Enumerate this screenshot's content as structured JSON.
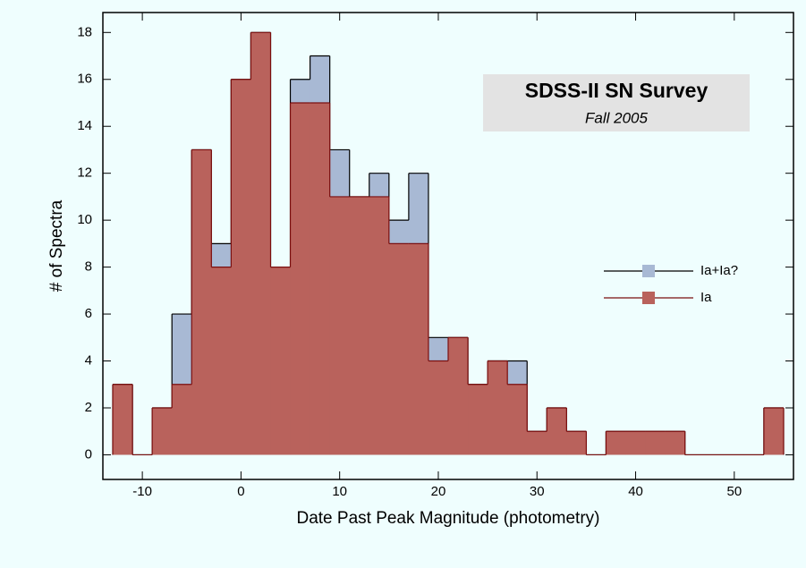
{
  "chart_data": {
    "type": "histogram",
    "title": "SDSS-II SN Survey",
    "subtitle": "Fall 2005",
    "x_label": "Date Past Peak Magnitude (photometry)",
    "y_label": "# of Spectra",
    "bins": [
      -13,
      -11,
      -9,
      -7,
      -5,
      -3,
      -1,
      1,
      3,
      5,
      7,
      9,
      11,
      13,
      15,
      17,
      19,
      21,
      23,
      25,
      27,
      29,
      31,
      33,
      35,
      37,
      39,
      41,
      43,
      45,
      47,
      49,
      51,
      53,
      55
    ],
    "series": [
      {
        "name": "Ia+Ia?",
        "color": "#a8b9d4",
        "line_color": "#000000",
        "values": [
          3,
          0,
          2,
          6,
          13,
          9,
          16,
          18,
          8,
          16,
          17,
          13,
          11,
          12,
          10,
          12,
          5,
          5,
          3,
          4,
          4,
          1,
          2,
          1,
          0,
          1,
          1,
          1,
          1,
          0,
          0,
          0,
          0,
          2
        ]
      },
      {
        "name": "Ia",
        "color": "#b9625c",
        "line_color": "#7a0f0f",
        "values": [
          3,
          0,
          2,
          3,
          13,
          8,
          16,
          18,
          8,
          15,
          15,
          11,
          11,
          11,
          9,
          9,
          4,
          5,
          3,
          4,
          3,
          1,
          2,
          1,
          0,
          1,
          1,
          1,
          1,
          0,
          0,
          0,
          0,
          2
        ]
      }
    ],
    "xlim": [
      -14,
      56
    ],
    "ylim": [
      -1.05,
      18.85
    ],
    "xticks": [
      -10,
      0,
      10,
      20,
      30,
      40,
      50
    ],
    "yticks": [
      0,
      2,
      4,
      6,
      8,
      10,
      12,
      14,
      16,
      18
    ],
    "legend": "right"
  }
}
